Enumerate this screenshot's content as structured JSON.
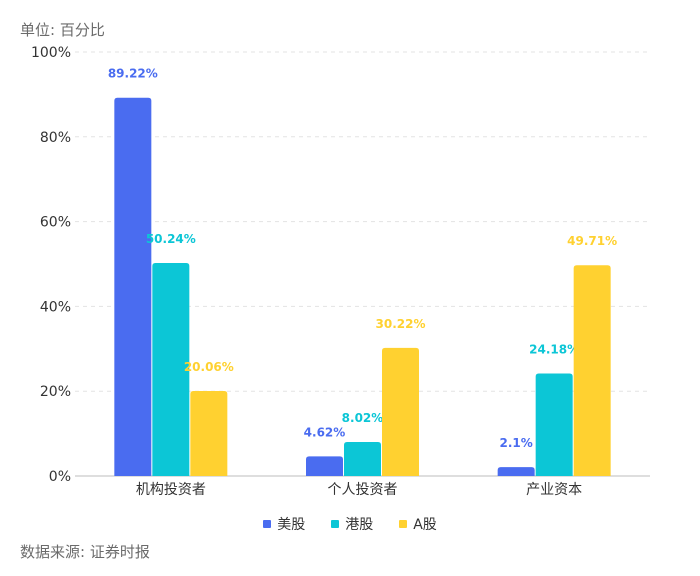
{
  "unit_label": "单位: 百分比",
  "source_label": "数据来源: 证券时报",
  "legend": [
    {
      "label": "美股",
      "color": "#4a6cf0"
    },
    {
      "label": "港股",
      "color": "#0cc6d6"
    },
    {
      "label": "A股",
      "color": "#ffd130"
    }
  ],
  "chart_data": {
    "type": "bar",
    "categories": [
      "机构投资者",
      "个人投资者",
      "产业资本"
    ],
    "series": [
      {
        "name": "美股",
        "color": "#4a6cf0",
        "values": [
          89.22,
          4.62,
          2.1
        ],
        "labels": [
          "89.22%",
          "4.62%",
          "2.1%"
        ]
      },
      {
        "name": "港股",
        "color": "#0cc6d6",
        "values": [
          50.24,
          8.02,
          24.18
        ],
        "labels": [
          "50.24%",
          "8.02%",
          "24.18%"
        ]
      },
      {
        "name": "A股",
        "color": "#ffd130",
        "values": [
          20.06,
          30.22,
          49.71
        ],
        "labels": [
          "20.06%",
          "30.22%",
          "49.71%"
        ]
      }
    ],
    "ylim": [
      0,
      100
    ],
    "yticks": [
      0,
      20,
      40,
      60,
      80,
      100
    ],
    "ytick_labels": [
      "0%",
      "20%",
      "40%",
      "60%",
      "80%",
      "100%"
    ],
    "grid": true,
    "legend_position": "bottom"
  }
}
